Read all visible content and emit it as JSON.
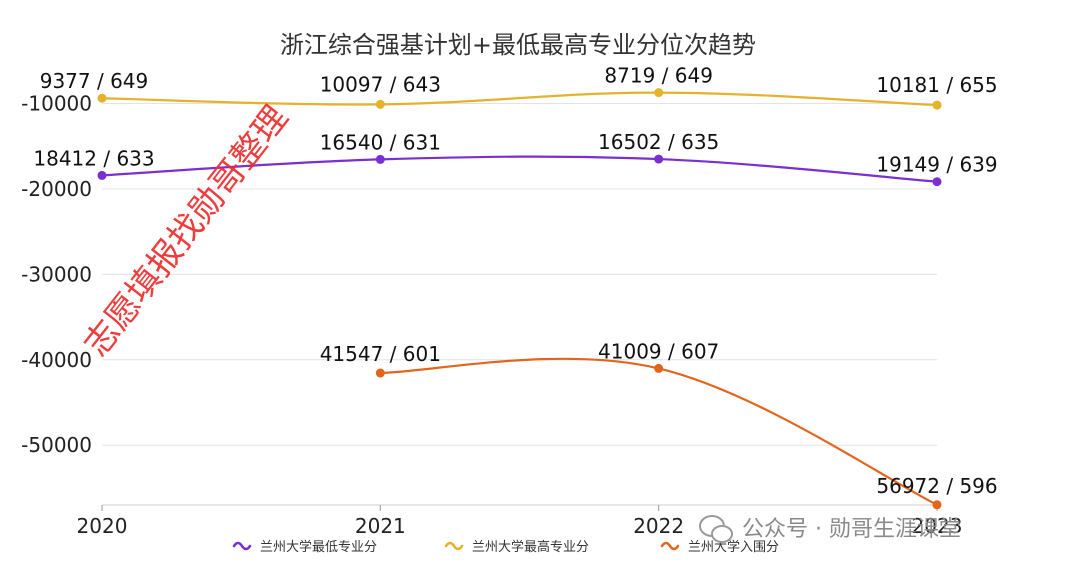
{
  "chart_data": {
    "type": "line",
    "title": "浙江综合强基计划+最低最高专业分位次趋势",
    "categories": [
      "2020",
      "2021",
      "2022",
      "2023"
    ],
    "ylim": [
      -57000,
      -9000
    ],
    "yticks": [
      -10000,
      -20000,
      -30000,
      -40000,
      -50000
    ],
    "ytick_labels": [
      "-10000",
      "-20000",
      "-30000",
      "-40000",
      "-50000"
    ],
    "grid": true,
    "series": [
      {
        "name": "兰州大学最低专业分",
        "color": "#7b2fd0",
        "values": [
          -18412,
          -16540,
          -16502,
          -19149
        ],
        "labels": [
          "18412 / 633",
          "16540 / 631",
          "16502 / 635",
          "19149 / 639"
        ]
      },
      {
        "name": "兰州大学最高专业分",
        "color": "#e6b22c",
        "values": [
          -9377,
          -10097,
          -8719,
          -10181
        ],
        "labels": [
          "9377 / 649",
          "10097 / 643",
          "8719 / 649",
          "10181 / 655"
        ]
      },
      {
        "name": "兰州大学入围分",
        "color": "#e2651b",
        "values": [
          null,
          -41547,
          -41009,
          -56972
        ],
        "labels": [
          null,
          "41547 / 601",
          "41009 / 607",
          "56972 / 596"
        ]
      }
    ],
    "legend_position": "bottom"
  },
  "watermark": "志愿填报找勋哥整理",
  "source_badge": "公众号 · 勋哥生涯课堂"
}
